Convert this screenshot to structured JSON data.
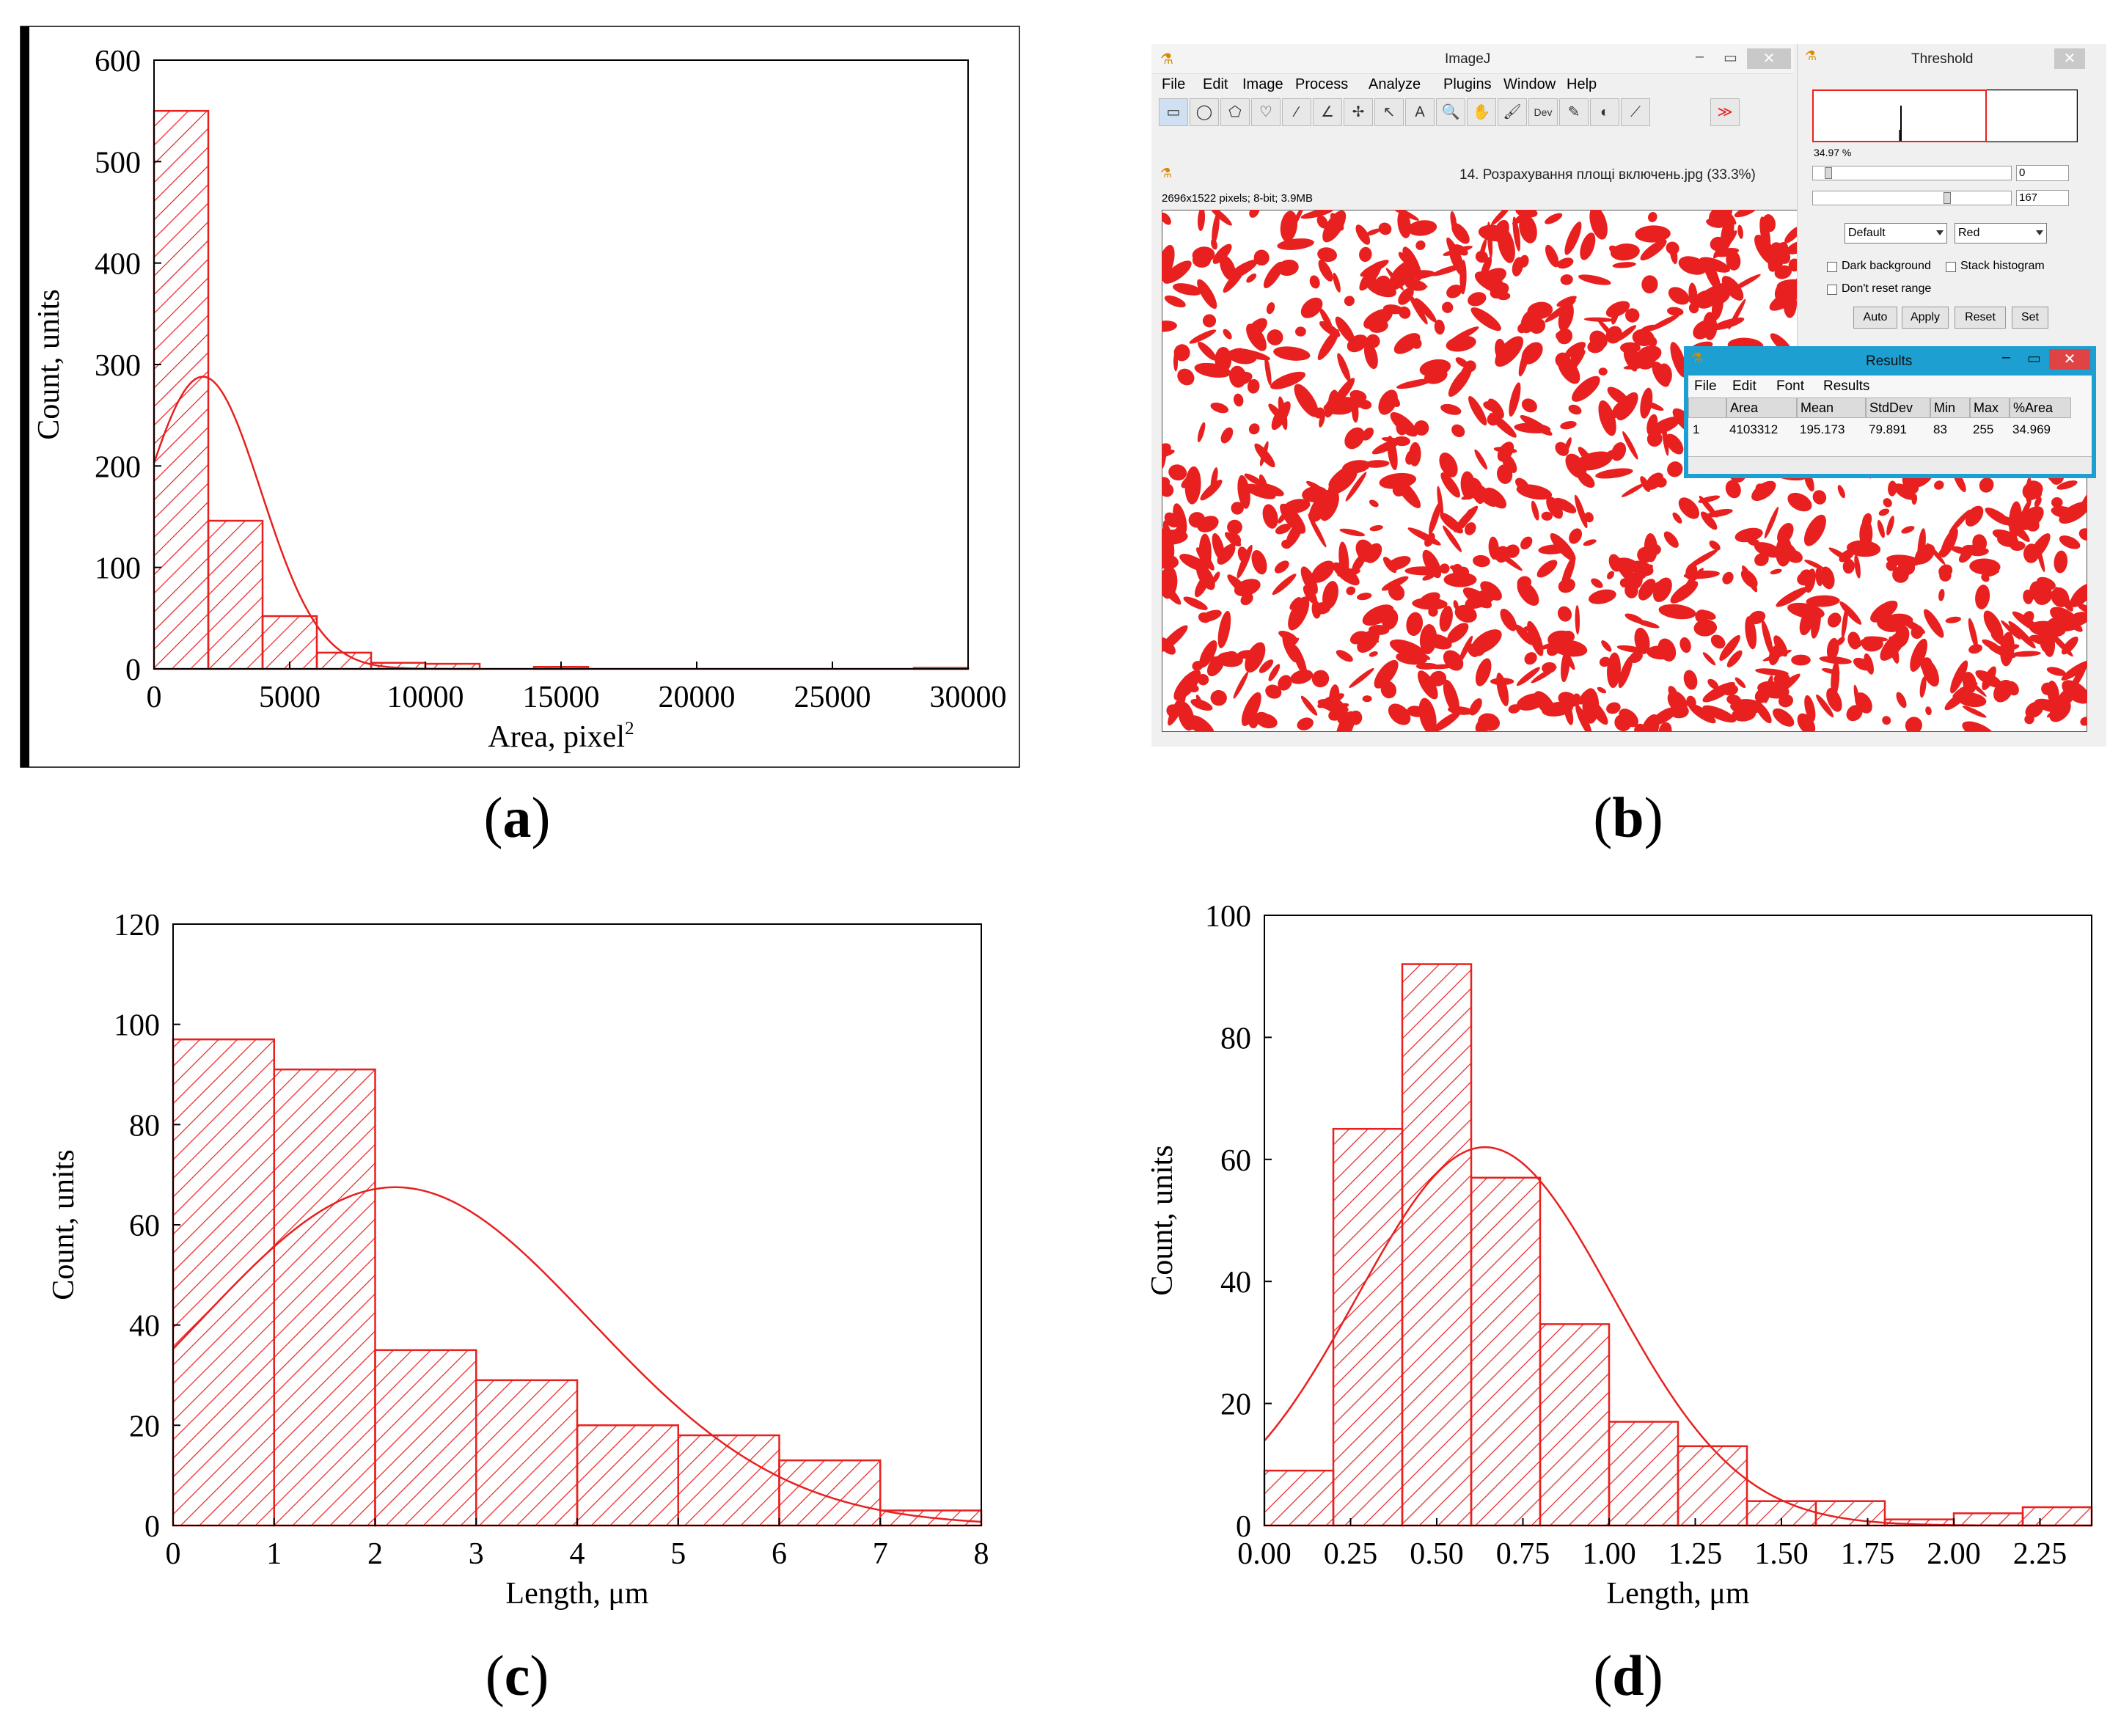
{
  "colors": {
    "red": "#e8201f",
    "axis": "#000000"
  },
  "labels": {
    "a": "a",
    "b": "b",
    "c": "c",
    "d": "d"
  },
  "chart_data": [
    {
      "id": "a",
      "type": "bar",
      "xlabel": "Area, pixel",
      "xlabel_sup": "2",
      "ylabel": "Count, units",
      "xlim": [
        0,
        30000
      ],
      "ylim": [
        0,
        600
      ],
      "xticks": [
        0,
        5000,
        10000,
        15000,
        20000,
        25000,
        30000
      ],
      "yticks": [
        0,
        100,
        200,
        300,
        400,
        500,
        600
      ],
      "bin_edges": [
        0,
        2000,
        4000,
        6000,
        8000,
        10000,
        12000,
        14000,
        16000,
        18000,
        20000,
        22000,
        24000,
        26000,
        28000,
        30000
      ],
      "values": [
        550,
        146,
        52,
        16,
        6,
        5,
        0,
        2,
        0,
        0,
        0,
        0,
        0,
        0,
        1
      ],
      "fit_curve": {
        "type": "normal",
        "mean": 1800,
        "sd": 2150,
        "peak": 288
      }
    },
    {
      "id": "c",
      "type": "bar",
      "xlabel": "Length, μm",
      "ylabel": "Count, units",
      "xlim": [
        0,
        8
      ],
      "ylim": [
        0,
        120
      ],
      "xticks": [
        0,
        1,
        2,
        3,
        4,
        5,
        6,
        7,
        8
      ],
      "yticks": [
        0,
        20,
        40,
        60,
        80,
        100,
        120
      ],
      "bin_edges": [
        0,
        1,
        2,
        3,
        4,
        5,
        6,
        7,
        8
      ],
      "values": [
        97,
        91,
        35,
        29,
        20,
        18,
        13,
        3
      ],
      "fit_curve": {
        "type": "normal",
        "mean": 2.2,
        "sd": 1.93,
        "peak": 67.5
      }
    },
    {
      "id": "d",
      "type": "bar",
      "xlabel": "Length, μm",
      "ylabel": "Count, units",
      "xlim": [
        0,
        2.4
      ],
      "ylim": [
        0,
        100
      ],
      "xticks": [
        "0.00",
        "0.25",
        "0.50",
        "0.75",
        "1.00",
        "1.25",
        "1.50",
        "1.75",
        "2.00",
        "2.25"
      ],
      "yticks": [
        0,
        20,
        40,
        60,
        80,
        100
      ],
      "bin_edges": [
        0,
        0.2,
        0.4,
        0.6,
        0.8,
        1.0,
        1.2,
        1.4,
        1.6,
        1.8,
        2.0,
        2.2,
        2.4
      ],
      "values": [
        9,
        65,
        92,
        57,
        33,
        17,
        13,
        4,
        4,
        1,
        2,
        3
      ],
      "fit_curve": {
        "type": "normal",
        "mean": 0.64,
        "sd": 0.37,
        "peak": 62
      }
    }
  ],
  "imagej": {
    "main_title": "ImageJ",
    "menu": [
      "File",
      "Edit",
      "Image",
      "Process",
      "Analyze",
      "Plugins",
      "Window",
      "Help"
    ],
    "toolbar": [
      "▭",
      "◯",
      "⬠",
      "♡",
      "∕",
      "∠",
      "✢",
      "↖",
      "A",
      "🔍",
      "✋",
      "🖌",
      "Dev",
      "✎",
      "◐",
      "⟋",
      "≫"
    ],
    "image_title": "14. Розрахування площі включень.jpg (33.3%)",
    "image_info": "2696x1522 pixels; 8-bit; 3.9MB",
    "threshold": {
      "title": "Threshold",
      "percent": "34.97 %",
      "min_value": "0",
      "max_value": "167",
      "method": "Default",
      "mode": "Red",
      "dark_background": "Dark background",
      "stack_histogram": "Stack histogram",
      "dont_reset": "Don't reset range",
      "buttons": [
        "Auto",
        "Apply",
        "Reset",
        "Set"
      ]
    },
    "results": {
      "title": "Results",
      "menu": [
        "File",
        "Edit",
        "Font",
        "Results"
      ],
      "headers": [
        "",
        "Area",
        "Mean",
        "StdDev",
        "Min",
        "Max",
        "%Area"
      ],
      "row": [
        "1",
        "4103312",
        "195.173",
        "79.891",
        "83",
        "255",
        "34.969"
      ]
    }
  }
}
